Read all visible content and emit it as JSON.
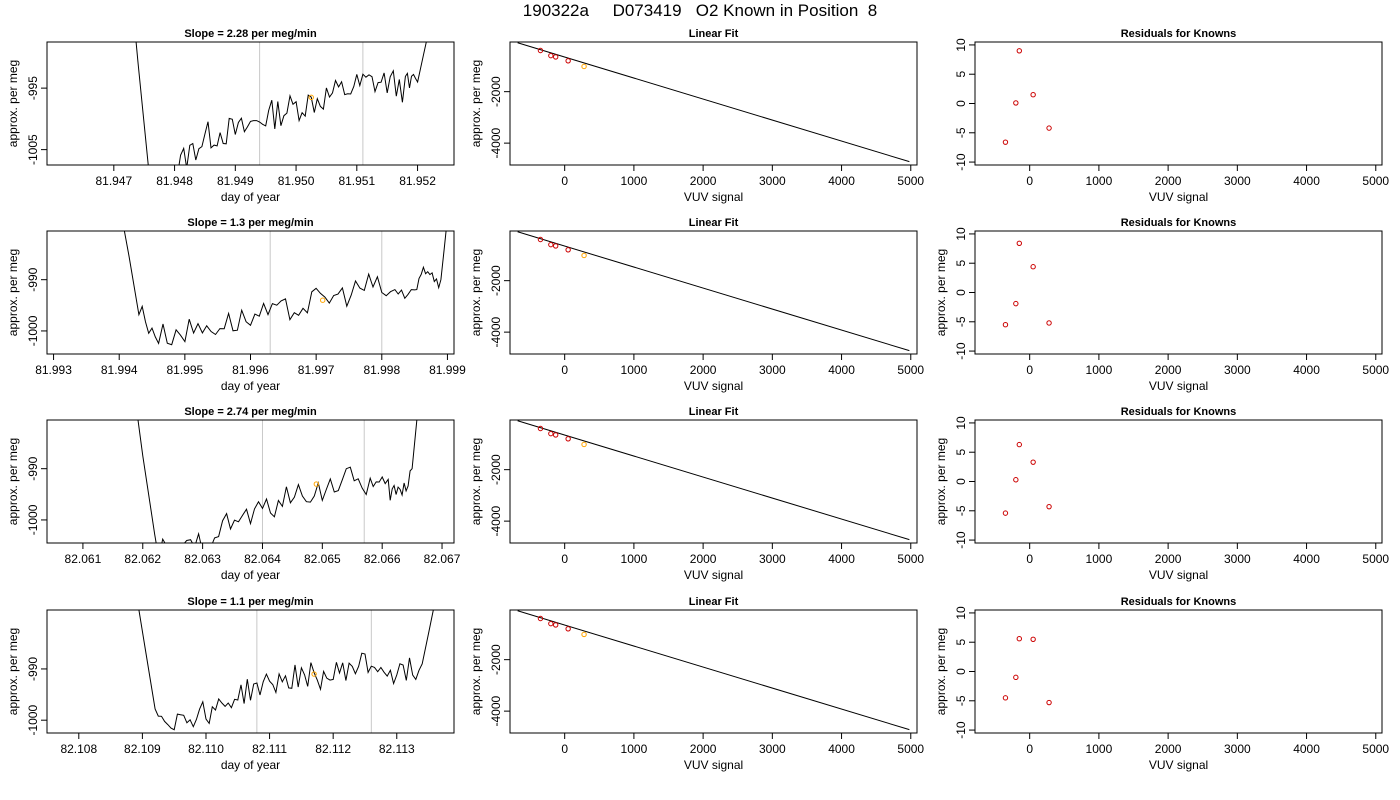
{
  "figure_title": "190322a     D073419   O2 Known in Position  8",
  "colors": {
    "trace": "#000000",
    "highlight": "#FFA500",
    "residual_point": "#CC0000",
    "marker_line": "#C8C8C8",
    "fit_line": "#000000"
  },
  "chart_data": [
    {
      "type": "line",
      "row": 1,
      "panel": "time-series",
      "title": "Slope =  2.28  per meg/min",
      "xlabel": "day of year",
      "ylabel": "approx. per meg",
      "xlim": [
        81.9459,
        81.9526
      ],
      "ylim": [
        -1007.5,
        -987.5
      ],
      "xticks": [
        "81.947",
        "81.948",
        "81.949",
        "81.950",
        "81.951",
        "81.952"
      ],
      "yticks": [
        "-1005",
        "-995"
      ],
      "marker_lines": [
        81.9494,
        81.9511
      ],
      "highlight_point": {
        "x": 81.95025,
        "y": -996.5
      },
      "series": [
        {
          "x": [
            81.9472,
            81.9476,
            81.9479,
            81.9482,
            81.9485,
            81.9488,
            81.9491,
            81.9494,
            81.9497,
            81.95,
            81.9503,
            81.9506,
            81.9509,
            81.9512,
            81.9515,
            81.9518,
            81.952,
            81.9522
          ],
          "values": [
            -970,
            -1012,
            -1010,
            -1006,
            -1003,
            -1002,
            -1002,
            -1000,
            -999,
            -998,
            -997,
            -996,
            -995,
            -994,
            -994,
            -995,
            -994,
            -985
          ]
        }
      ]
    },
    {
      "type": "line",
      "row": 1,
      "panel": "linear-fit",
      "title": "Linear Fit",
      "xlabel": "VUV signal",
      "ylabel": "approx. per meg",
      "xlim": [
        -790,
        5090
      ],
      "ylim": [
        -4850,
        -70
      ],
      "xticks": [
        "0",
        "1000",
        "2000",
        "3000",
        "4000",
        "5000"
      ],
      "yticks": [
        "-2000",
        "-4000"
      ],
      "fit_line": {
        "x": [
          -680,
          4980
        ],
        "y": [
          -100,
          -4720
        ]
      },
      "points": {
        "x": [
          -350,
          -200,
          -130,
          50
        ],
        "y": [
          -400,
          -600,
          -650,
          -800
        ]
      },
      "highlight_point": {
        "x": 280,
        "y": -1020
      }
    },
    {
      "type": "scatter",
      "row": 1,
      "panel": "residuals",
      "title": "Residuals for Knowns",
      "xlabel": "VUV signal",
      "ylabel": "",
      "xlim": [
        -790,
        5090
      ],
      "ylim": [
        -10.5,
        10.5
      ],
      "xticks": [
        "0",
        "1000",
        "2000",
        "3000",
        "4000",
        "5000"
      ],
      "yticks": [
        "-10",
        "-5",
        "0",
        "5",
        "10"
      ],
      "x": [
        -350,
        -200,
        -150,
        50,
        280
      ],
      "values": [
        -6.6,
        0.1,
        9.0,
        1.5,
        -4.2
      ]
    },
    {
      "type": "line",
      "row": 2,
      "panel": "time-series",
      "title": "Slope =  1.3  per meg/min",
      "xlabel": "day of year",
      "ylabel": "approx. per meg",
      "xlim": [
        81.9929,
        81.9991
      ],
      "ylim": [
        -1004.5,
        -980.5
      ],
      "xticks": [
        "81.993",
        "81.994",
        "81.995",
        "81.996",
        "81.997",
        "81.998",
        "81.999"
      ],
      "yticks": [
        "-1000",
        "-990"
      ],
      "marker_lines": [
        81.9963,
        81.998
      ],
      "highlight_point": {
        "x": 81.9971,
        "y": -994
      },
      "series": [
        {
          "x": [
            81.994,
            81.9943,
            81.9946,
            81.995,
            81.9954,
            81.9958,
            81.9962,
            81.9966,
            81.997,
            81.9974,
            81.9978,
            81.9982,
            81.9985,
            81.9987,
            81.9989,
            81.999
          ],
          "values": [
            -975,
            -996,
            -1001,
            -1000,
            -999,
            -998,
            -997,
            -996,
            -994,
            -993,
            -991,
            -993,
            -992,
            -989,
            -990,
            -978
          ]
        }
      ]
    },
    {
      "type": "line",
      "row": 2,
      "panel": "linear-fit",
      "title": "Linear Fit",
      "xlabel": "VUV signal",
      "ylabel": "approx. per meg",
      "xlim": [
        -790,
        5090
      ],
      "ylim": [
        -4850,
        -70
      ],
      "xticks": [
        "0",
        "1000",
        "2000",
        "3000",
        "4000",
        "5000"
      ],
      "yticks": [
        "-2000",
        "-4000"
      ],
      "fit_line": {
        "x": [
          -680,
          4980
        ],
        "y": [
          -100,
          -4720
        ]
      },
      "points": {
        "x": [
          -350,
          -200,
          -130,
          50
        ],
        "y": [
          -400,
          -600,
          -650,
          -800
        ]
      },
      "highlight_point": {
        "x": 280,
        "y": -1020
      }
    },
    {
      "type": "scatter",
      "row": 2,
      "panel": "residuals",
      "title": "Residuals for Knowns",
      "xlabel": "VUV signal",
      "ylabel": "approx. per meg",
      "xlim": [
        -790,
        5090
      ],
      "ylim": [
        -10.5,
        10.5
      ],
      "xticks": [
        "0",
        "1000",
        "2000",
        "3000",
        "4000",
        "5000"
      ],
      "yticks": [
        "-10",
        "-5",
        "0",
        "5",
        "10"
      ],
      "x": [
        -350,
        -200,
        -150,
        50,
        280
      ],
      "values": [
        -5.5,
        -1.9,
        8.4,
        4.4,
        -5.2
      ]
    },
    {
      "type": "line",
      "row": 3,
      "panel": "time-series",
      "title": "Slope =  2.74  per meg/min",
      "xlabel": "day of year",
      "ylabel": "approx. per meg",
      "xlim": [
        82.0604,
        82.0672
      ],
      "ylim": [
        -1004.5,
        -980.5
      ],
      "xticks": [
        "82.061",
        "82.062",
        "82.063",
        "82.064",
        "82.065",
        "82.066",
        "82.067"
      ],
      "yticks": [
        "-1000",
        "-990"
      ],
      "marker_lines": [
        82.064,
        82.0657
      ],
      "highlight_point": {
        "x": 82.0649,
        "y": -993
      },
      "series": [
        {
          "x": [
            82.0618,
            82.0622,
            82.0626,
            82.063,
            82.0634,
            82.0638,
            82.0642,
            82.0646,
            82.065,
            82.0654,
            82.0658,
            82.0661,
            82.0663,
            82.0665,
            82.0666
          ],
          "values": [
            -970,
            -1005,
            -1007,
            -1004,
            -1001,
            -999,
            -997,
            -995,
            -994,
            -992,
            -993,
            -994,
            -995,
            -990,
            -978
          ]
        }
      ]
    },
    {
      "type": "line",
      "row": 3,
      "panel": "linear-fit",
      "title": "Linear Fit",
      "xlabel": "VUV signal",
      "ylabel": "approx. per meg",
      "xlim": [
        -790,
        5090
      ],
      "ylim": [
        -4850,
        -70
      ],
      "xticks": [
        "0",
        "1000",
        "2000",
        "3000",
        "4000",
        "5000"
      ],
      "yticks": [
        "-2000",
        "-4000"
      ],
      "fit_line": {
        "x": [
          -680,
          4980
        ],
        "y": [
          -100,
          -4720
        ]
      },
      "points": {
        "x": [
          -350,
          -200,
          -130,
          50
        ],
        "y": [
          -400,
          -600,
          -650,
          -800
        ]
      },
      "highlight_point": {
        "x": 280,
        "y": -1020
      }
    },
    {
      "type": "scatter",
      "row": 3,
      "panel": "residuals",
      "title": "Residuals for Knowns",
      "xlabel": "VUV signal",
      "ylabel": "approx. per meg",
      "xlim": [
        -790,
        5090
      ],
      "ylim": [
        -10.5,
        10.5
      ],
      "xticks": [
        "0",
        "1000",
        "2000",
        "3000",
        "4000",
        "5000"
      ],
      "yticks": [
        "-10",
        "-5",
        "0",
        "5",
        "10"
      ],
      "x": [
        -350,
        -200,
        -150,
        50,
        280
      ],
      "values": [
        -5.4,
        0.3,
        6.3,
        3.3,
        -4.3
      ]
    },
    {
      "type": "line",
      "row": 4,
      "panel": "time-series",
      "title": "Slope =  1.1  per meg/min",
      "xlabel": "day of year",
      "ylabel": "approx. per meg",
      "xlim": [
        82.1075,
        82.1139
      ],
      "ylim": [
        -1002.5,
        -978.5
      ],
      "xticks": [
        "82.108",
        "82.109",
        "82.110",
        "82.111",
        "82.112",
        "82.113"
      ],
      "yticks": [
        "-1000",
        "-990"
      ],
      "marker_lines": [
        82.1108,
        82.1126
      ],
      "highlight_point": {
        "x": 82.1117,
        "y": -991
      },
      "series": [
        {
          "x": [
            82.1089,
            82.1092,
            82.1095,
            82.1098,
            82.1101,
            82.1104,
            82.1107,
            82.111,
            82.1113,
            82.1116,
            82.1119,
            82.1122,
            82.1125,
            82.1128,
            82.1131,
            82.1134,
            82.1136
          ],
          "values": [
            -975,
            -998,
            -1000,
            -999,
            -998,
            -996,
            -994,
            -993,
            -992,
            -991,
            -992,
            -990,
            -989,
            -990,
            -991,
            -989,
            -977
          ]
        }
      ]
    },
    {
      "type": "line",
      "row": 4,
      "panel": "linear-fit",
      "title": "Linear Fit",
      "xlabel": "VUV signal",
      "ylabel": "approx. per meg",
      "xlim": [
        -790,
        5090
      ],
      "ylim": [
        -4850,
        -70
      ],
      "xticks": [
        "0",
        "1000",
        "2000",
        "3000",
        "4000",
        "5000"
      ],
      "yticks": [
        "-2000",
        "-4000"
      ],
      "fit_line": {
        "x": [
          -680,
          4980
        ],
        "y": [
          -100,
          -4720
        ]
      },
      "points": {
        "x": [
          -350,
          -200,
          -130,
          50
        ],
        "y": [
          -400,
          -600,
          -650,
          -800
        ]
      },
      "highlight_point": {
        "x": 280,
        "y": -1020
      }
    },
    {
      "type": "scatter",
      "row": 4,
      "panel": "residuals",
      "title": "Residuals for Knowns",
      "xlabel": "VUV signal",
      "ylabel": "approx. per meg",
      "xlim": [
        -790,
        5090
      ],
      "ylim": [
        -10.5,
        10.5
      ],
      "xticks": [
        "0",
        "1000",
        "2000",
        "3000",
        "4000",
        "5000"
      ],
      "yticks": [
        "-10",
        "-5",
        "0",
        "5",
        "10"
      ],
      "x": [
        -350,
        -200,
        -150,
        50,
        280
      ],
      "values": [
        -4.5,
        -1.0,
        5.6,
        5.5,
        -5.3
      ]
    }
  ]
}
